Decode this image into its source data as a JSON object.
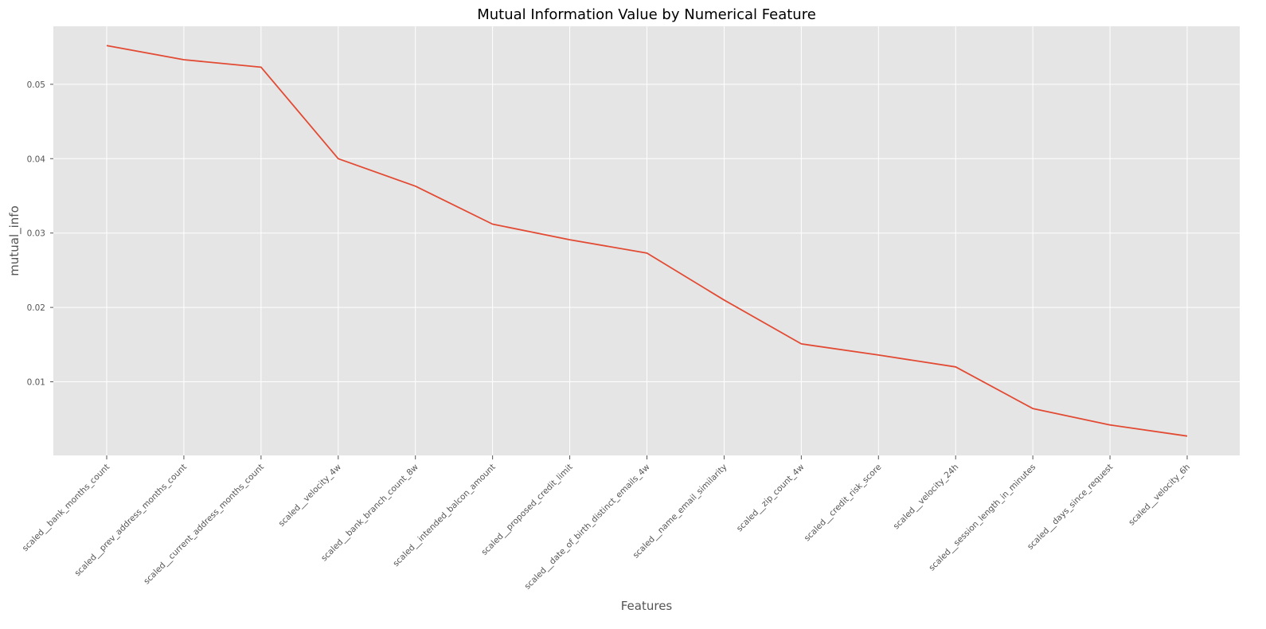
{
  "chart_data": {
    "type": "line",
    "title": "Mutual Information Value by Numerical Feature",
    "xlabel": "Features",
    "ylabel": "mutual_info",
    "categories": [
      "scaled__bank_months_count",
      "scaled__prev_address_months_count",
      "scaled__current_address_months_count",
      "scaled__velocity_4w",
      "scaled__bank_branch_count_8w",
      "scaled__intended_balcon_amount",
      "scaled__proposed_credit_limit",
      "scaled__date_of_birth_distinct_emails_4w",
      "scaled__name_email_similarity",
      "scaled__zip_count_4w",
      "scaled__credit_risk_score",
      "scaled__velocity_24h",
      "scaled__session_length_in_minutes",
      "scaled__days_since_request",
      "scaled__velocity_6h"
    ],
    "series": [
      {
        "values": [
          0.0552,
          0.0533,
          0.0523,
          0.04,
          0.0363,
          0.0312,
          0.0291,
          0.0273,
          0.021,
          0.0151,
          0.0136,
          0.012,
          0.0064,
          0.0042,
          0.0027
        ],
        "color": "#e24a33"
      }
    ],
    "yticks": [
      0.01,
      0.02,
      0.03,
      0.04,
      0.05
    ],
    "ytick_labels": [
      "0.01",
      "0.02",
      "0.03",
      "0.04",
      "0.05"
    ],
    "ylim": [
      0.0001,
      0.0578
    ],
    "grid": true,
    "plot_background": "#e5e5e5"
  }
}
